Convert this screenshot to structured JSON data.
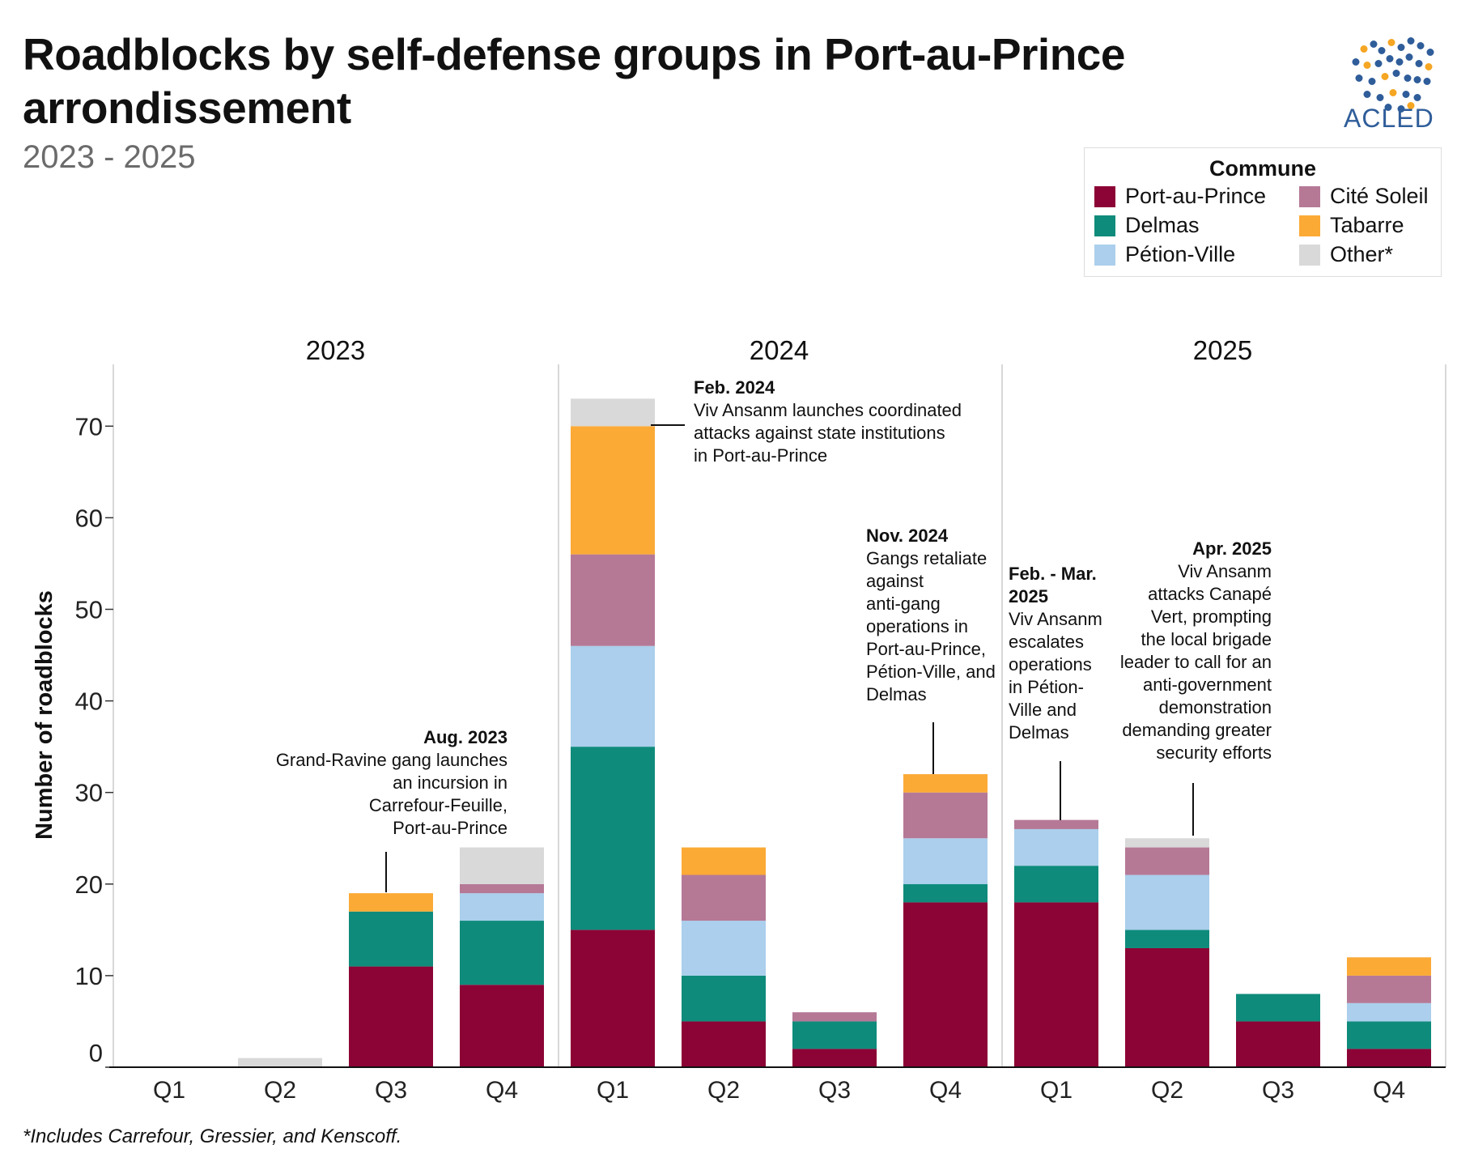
{
  "title": "Roadblocks by self-defense groups in Port-au-Prince arrondissement",
  "subtitle": "2023 - 2025",
  "logo_text": "ACLED",
  "footnote": "*Includes Carrefour, Gressier, and Kenscoff.",
  "legend": {
    "title": "Commune",
    "items": [
      {
        "label": "Port-au-Prince",
        "color": "#8c0335"
      },
      {
        "label": "Delmas",
        "color": "#0f8b7b"
      },
      {
        "label": "Pétion-Ville",
        "color": "#abcfec"
      },
      {
        "label": "Cité Soleil",
        "color": "#b57996"
      },
      {
        "label": "Tabarre",
        "color": "#fbaa36"
      },
      {
        "label": "Other*",
        "color": "#d9d9d9"
      }
    ]
  },
  "annotations": [
    {
      "date": "Aug. 2023",
      "text": [
        "Grand-Ravine gang launches",
        "an incursion in",
        "Carrefour-Feuille,",
        "Port-au-Prince"
      ]
    },
    {
      "date": "Feb. 2024",
      "text": [
        "Viv Ansanm launches coordinated",
        "attacks against state institutions",
        "in Port-au-Prince"
      ]
    },
    {
      "date": "Nov. 2024",
      "text": [
        "Gangs retaliate",
        "against",
        "anti-gang",
        "operations in",
        "Port-au-Prince,",
        "Pétion-Ville, and",
        "Delmas"
      ]
    },
    {
      "date": "Feb. - Mar.\n2025",
      "text": [
        "Viv Ansanm",
        "escalates",
        "operations",
        "in Pétion-",
        "Ville and",
        "Delmas"
      ]
    },
    {
      "date": "Apr. 2025",
      "text": [
        "Viv Ansanm",
        "attacks Canapé",
        "Vert, prompting",
        "the local brigade",
        "leader to call for an",
        "anti-government",
        "demonstration",
        "demanding greater",
        "security efforts"
      ]
    }
  ],
  "chart_data": {
    "type": "bar",
    "stacked": true,
    "title": "Roadblocks by self-defense groups in Port-au-Prince arrondissement",
    "subtitle": "2023 - 2025",
    "ylabel": "Number of roadblocks",
    "xlabel": "",
    "ylim": [
      0,
      76
    ],
    "yticks": [
      0,
      10,
      20,
      30,
      40,
      50,
      60,
      70
    ],
    "groups": [
      "2023",
      "2024",
      "2025"
    ],
    "categories": [
      "Q1",
      "Q2",
      "Q3",
      "Q4",
      "Q1",
      "Q2",
      "Q3",
      "Q4",
      "Q1",
      "Q2",
      "Q3",
      "Q4"
    ],
    "legend_position": "top-right",
    "grid": false,
    "series": [
      {
        "name": "Port-au-Prince",
        "values": [
          0,
          0,
          11,
          9,
          15,
          5,
          2,
          18,
          18,
          13,
          5,
          2
        ]
      },
      {
        "name": "Delmas",
        "values": [
          0,
          0,
          6,
          7,
          20,
          5,
          3,
          2,
          4,
          2,
          3,
          3
        ]
      },
      {
        "name": "Pétion-Ville",
        "values": [
          0,
          0,
          0,
          3,
          11,
          6,
          0,
          5,
          4,
          6,
          0,
          2
        ]
      },
      {
        "name": "Cité Soleil",
        "values": [
          0,
          0,
          0,
          1,
          10,
          5,
          1,
          5,
          1,
          3,
          0,
          3
        ]
      },
      {
        "name": "Tabarre",
        "values": [
          0,
          0,
          2,
          0,
          14,
          3,
          0,
          2,
          0,
          0,
          0,
          2
        ]
      },
      {
        "name": "Other*",
        "values": [
          0,
          1,
          0,
          4,
          3,
          0,
          0,
          0,
          0,
          1,
          0,
          0
        ]
      }
    ]
  }
}
